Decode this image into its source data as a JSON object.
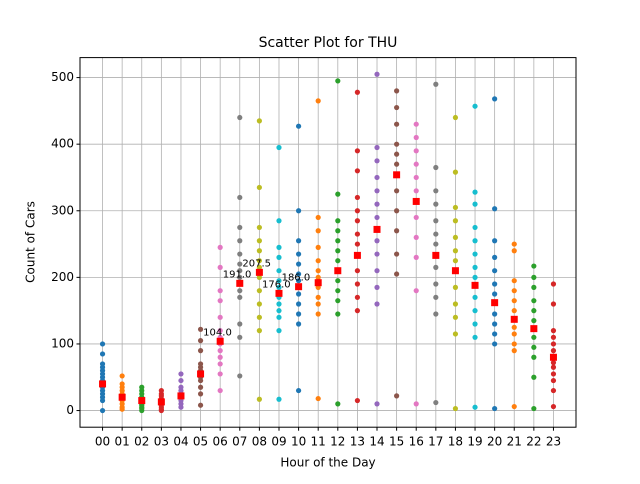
{
  "chart_data": {
    "type": "scatter",
    "title": "Scatter Plot for THU",
    "x_label": "Hour of the Day",
    "y_label": "Count of Cars",
    "categories": [
      "00",
      "01",
      "02",
      "03",
      "04",
      "05",
      "06",
      "07",
      "08",
      "09",
      "10",
      "11",
      "12",
      "13",
      "14",
      "15",
      "16",
      "17",
      "18",
      "19",
      "20",
      "21",
      "22",
      "23"
    ],
    "ylim": [
      -25,
      530
    ],
    "yticks": [
      0,
      100,
      200,
      300,
      400,
      500
    ],
    "grid": true,
    "series": [
      {
        "color": "#1f77b4",
        "values": [
          0,
          15,
          20,
          25,
          30,
          35,
          40,
          42,
          45,
          50,
          55,
          60,
          65,
          70,
          85,
          100
        ]
      },
      {
        "color": "#ff7f0e",
        "values": [
          2,
          5,
          10,
          15,
          20,
          22,
          25,
          30,
          35,
          40,
          52
        ]
      },
      {
        "color": "#2ca02c",
        "values": [
          0,
          3,
          5,
          8,
          10,
          15,
          18,
          20,
          25,
          30,
          35
        ]
      },
      {
        "color": "#d62728",
        "values": [
          0,
          2,
          5,
          8,
          10,
          12,
          15,
          18,
          22,
          25,
          30
        ]
      },
      {
        "color": "#9467bd",
        "values": [
          5,
          10,
          15,
          18,
          20,
          22,
          25,
          30,
          35,
          45,
          55
        ]
      },
      {
        "color": "#8c564b",
        "values": [
          8,
          25,
          35,
          45,
          50,
          55,
          60,
          65,
          70,
          90,
          105,
          122
        ]
      },
      {
        "color": "#e377c2",
        "values": [
          30,
          55,
          70,
          80,
          90,
          100,
          104,
          110,
          120,
          140,
          165,
          180,
          215,
          245
        ]
      },
      {
        "color": "#7f7f7f",
        "values": [
          52,
          110,
          130,
          170,
          180,
          191,
          200,
          210,
          220,
          235,
          255,
          275,
          320,
          440
        ]
      },
      {
        "color": "#bcbd22",
        "values": [
          17,
          120,
          140,
          160,
          180,
          200,
          207.5,
          215,
          225,
          240,
          255,
          275,
          335,
          435
        ]
      },
      {
        "color": "#17becf",
        "values": [
          17,
          120,
          140,
          150,
          160,
          170,
          176,
          185,
          195,
          210,
          230,
          245,
          285,
          395
        ]
      },
      {
        "color": "#1f77b4",
        "values": [
          30,
          130,
          145,
          160,
          175,
          186,
          195,
          205,
          220,
          235,
          255,
          300,
          427
        ]
      },
      {
        "color": "#ff7f0e",
        "values": [
          18,
          145,
          160,
          170,
          185,
          192,
          200,
          210,
          225,
          245,
          270,
          290,
          465
        ]
      },
      {
        "color": "#2ca02c",
        "values": [
          10,
          145,
          165,
          180,
          195,
          210,
          225,
          240,
          255,
          270,
          285,
          325,
          495
        ]
      },
      {
        "color": "#d62728",
        "values": [
          15,
          150,
          170,
          190,
          210,
          233,
          250,
          265,
          285,
          300,
          320,
          360,
          390,
          478
        ]
      },
      {
        "color": "#9467bd",
        "values": [
          10,
          160,
          185,
          210,
          235,
          255,
          272,
          290,
          310,
          330,
          350,
          375,
          395,
          505
        ]
      },
      {
        "color": "#8c564b",
        "values": [
          22,
          205,
          235,
          270,
          300,
          330,
          354,
          370,
          385,
          400,
          430,
          455,
          480
        ]
      },
      {
        "color": "#e377c2",
        "values": [
          10,
          180,
          230,
          260,
          290,
          314,
          330,
          350,
          370,
          390,
          410,
          430
        ]
      },
      {
        "color": "#7f7f7f",
        "values": [
          12,
          145,
          170,
          190,
          215,
          233,
          250,
          265,
          285,
          310,
          330,
          365,
          490
        ]
      },
      {
        "color": "#bcbd22",
        "values": [
          3,
          115,
          140,
          160,
          185,
          210,
          225,
          240,
          260,
          285,
          305,
          358,
          440
        ]
      },
      {
        "color": "#17becf",
        "values": [
          5,
          110,
          130,
          150,
          170,
          188,
          200,
          215,
          235,
          255,
          275,
          310,
          328,
          457
        ]
      },
      {
        "color": "#1f77b4",
        "values": [
          3,
          100,
          115,
          130,
          145,
          162,
          175,
          190,
          210,
          230,
          255,
          303,
          468
        ]
      },
      {
        "color": "#ff7f0e",
        "values": [
          6,
          90,
          100,
          115,
          125,
          137,
          150,
          165,
          180,
          195,
          240,
          250
        ]
      },
      {
        "color": "#2ca02c",
        "values": [
          3,
          50,
          80,
          95,
          110,
          123,
          135,
          150,
          165,
          185,
          200,
          217
        ]
      },
      {
        "color": "#d62728",
        "values": [
          6,
          30,
          45,
          55,
          65,
          72,
          80,
          90,
          100,
          110,
          120,
          160,
          190
        ]
      }
    ],
    "medians": {
      "color": "red",
      "values": [
        40,
        20,
        15,
        13,
        22,
        55,
        104,
        191,
        207.5,
        176,
        186,
        192,
        210,
        233,
        272,
        354,
        314,
        233,
        210,
        188,
        162,
        137,
        123,
        80
      ],
      "value_labels": [
        null,
        null,
        null,
        null,
        null,
        null,
        "104.0",
        "191.0",
        "207.5",
        "176.0",
        "186.0",
        null,
        null,
        null,
        null,
        null,
        null,
        null,
        null,
        null,
        null,
        null,
        null,
        null
      ]
    }
  }
}
